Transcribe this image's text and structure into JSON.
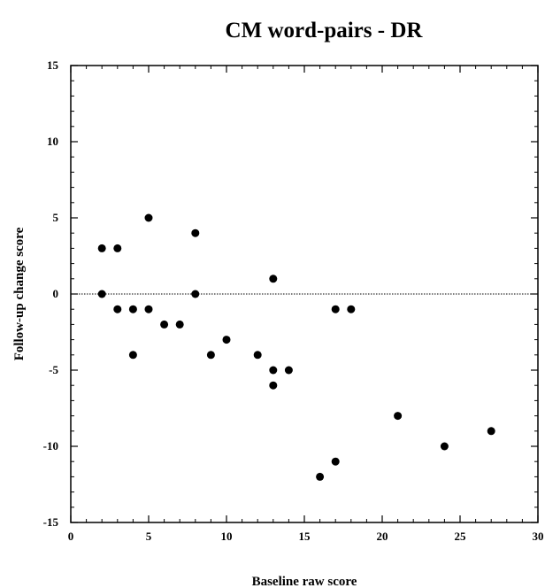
{
  "chart_data": {
    "type": "scatter",
    "title": "CM word-pairs - DR",
    "xlabel": "Baseline raw score",
    "ylabel": "Follow-up change score",
    "xlim": [
      0,
      30
    ],
    "ylim": [
      -15,
      15
    ],
    "xticks": [
      0,
      5,
      10,
      15,
      20,
      25,
      30
    ],
    "yticks": [
      15,
      10,
      5,
      0,
      -5,
      -10,
      -15
    ],
    "grid": false,
    "reference_line": {
      "y": 0,
      "style": "dotted"
    },
    "marker_color": "#000000",
    "points": [
      {
        "x": 2,
        "y": 3
      },
      {
        "x": 2,
        "y": 0
      },
      {
        "x": 3,
        "y": 3
      },
      {
        "x": 3,
        "y": -1
      },
      {
        "x": 4,
        "y": -1
      },
      {
        "x": 4,
        "y": -4
      },
      {
        "x": 5,
        "y": 5
      },
      {
        "x": 5,
        "y": -1
      },
      {
        "x": 6,
        "y": -2
      },
      {
        "x": 7,
        "y": -2
      },
      {
        "x": 8,
        "y": 4
      },
      {
        "x": 8,
        "y": 0
      },
      {
        "x": 9,
        "y": -4
      },
      {
        "x": 10,
        "y": -3
      },
      {
        "x": 12,
        "y": -4
      },
      {
        "x": 13,
        "y": 1
      },
      {
        "x": 13,
        "y": -5
      },
      {
        "x": 13,
        "y": -6
      },
      {
        "x": 14,
        "y": -5
      },
      {
        "x": 16,
        "y": -12
      },
      {
        "x": 17,
        "y": -1
      },
      {
        "x": 17,
        "y": -11
      },
      {
        "x": 18,
        "y": -1
      },
      {
        "x": 21,
        "y": -8
      },
      {
        "x": 24,
        "y": -10
      },
      {
        "x": 27,
        "y": -9
      }
    ]
  }
}
